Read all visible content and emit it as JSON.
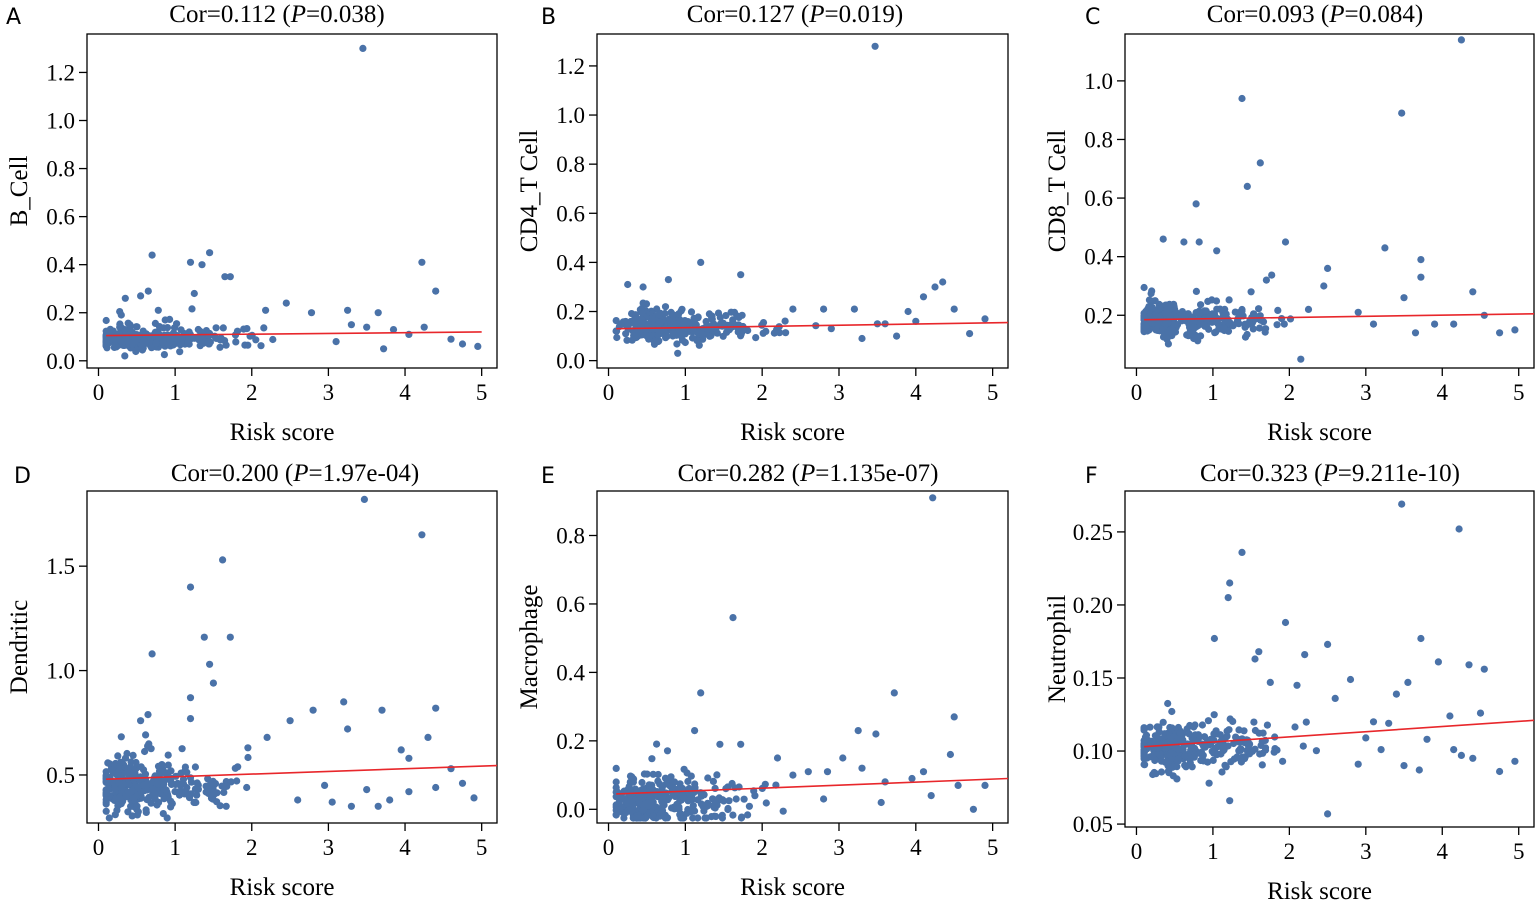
{
  "colors": {
    "point": "#4a72a8",
    "fit_line": "#e8272b",
    "axes": "#000000"
  },
  "chart_data": [
    {
      "panel": "A",
      "type": "scatter",
      "title": {
        "prefix": "Cor=0.112 (",
        "p_symbol": "P",
        "suffix": "=0.038)"
      },
      "xlabel": "Risk score",
      "ylabel": "B_Cell",
      "xlim": [
        -0.15,
        5.2
      ],
      "ylim": [
        -0.03,
        1.36
      ],
      "xticks": [
        0,
        1,
        2,
        3,
        4,
        5
      ],
      "yticks": [
        0.0,
        0.2,
        0.4,
        0.6,
        0.8,
        1.0,
        1.2
      ],
      "ytick_decimals": 1,
      "fit": {
        "x": [
          0.1,
          5.0
        ],
        "y": [
          0.105,
          0.12
        ]
      },
      "outliers": [
        [
          3.45,
          1.3
        ],
        [
          0.7,
          0.44
        ],
        [
          1.45,
          0.45
        ],
        [
          1.2,
          0.41
        ],
        [
          1.35,
          0.4
        ],
        [
          1.65,
          0.35
        ],
        [
          1.72,
          0.35
        ],
        [
          4.22,
          0.41
        ],
        [
          4.4,
          0.29
        ],
        [
          0.65,
          0.29
        ],
        [
          0.55,
          0.27
        ],
        [
          1.25,
          0.28
        ],
        [
          0.35,
          0.26
        ],
        [
          0.78,
          0.21
        ],
        [
          2.45,
          0.24
        ],
        [
          2.78,
          0.2
        ],
        [
          3.25,
          0.21
        ],
        [
          3.65,
          0.2
        ],
        [
          2.18,
          0.21
        ],
        [
          3.85,
          0.13
        ],
        [
          4.25,
          0.14
        ],
        [
          4.6,
          0.09
        ],
        [
          4.75,
          0.07
        ],
        [
          4.95,
          0.06
        ],
        [
          3.3,
          0.15
        ],
        [
          3.1,
          0.08
        ],
        [
          3.5,
          0.14
        ],
        [
          3.72,
          0.05
        ],
        [
          4.05,
          0.11
        ]
      ],
      "cluster": {
        "n": 330,
        "x": [
          0.1,
          2.6
        ],
        "x_center": 0.5,
        "y_base": 0.09,
        "y_spread": 0.04,
        "seed": 11
      }
    },
    {
      "panel": "B",
      "type": "scatter",
      "title": {
        "prefix": "Cor=0.127 (",
        "p_symbol": "P",
        "suffix": "=0.019)"
      },
      "xlabel": "Risk score",
      "ylabel": "CD4_T Cell",
      "xlim": [
        -0.15,
        5.2
      ],
      "ylim": [
        -0.03,
        1.33
      ],
      "xticks": [
        0,
        1,
        2,
        3,
        4,
        5
      ],
      "yticks": [
        0.0,
        0.2,
        0.4,
        0.6,
        0.8,
        1.0,
        1.2
      ],
      "ytick_decimals": 1,
      "fit": {
        "x": [
          0.1,
          5.2
        ],
        "y": [
          0.13,
          0.155
        ]
      },
      "outliers": [
        [
          3.47,
          1.28
        ],
        [
          1.2,
          0.4
        ],
        [
          1.72,
          0.35
        ],
        [
          0.78,
          0.33
        ],
        [
          0.25,
          0.31
        ],
        [
          0.45,
          0.3
        ],
        [
          4.35,
          0.32
        ],
        [
          4.25,
          0.3
        ],
        [
          4.1,
          0.26
        ],
        [
          4.5,
          0.21
        ],
        [
          4.7,
          0.11
        ],
        [
          4.9,
          0.17
        ],
        [
          3.2,
          0.21
        ],
        [
          2.8,
          0.21
        ],
        [
          3.6,
          0.15
        ],
        [
          3.9,
          0.2
        ],
        [
          3.3,
          0.09
        ],
        [
          2.4,
          0.21
        ],
        [
          2.9,
          0.13
        ],
        [
          0.9,
          0.03
        ],
        [
          3.5,
          0.15
        ],
        [
          3.75,
          0.1
        ],
        [
          4.0,
          0.16
        ]
      ],
      "cluster": {
        "n": 330,
        "x": [
          0.1,
          2.8
        ],
        "x_center": 0.7,
        "y_base": 0.135,
        "y_spread": 0.05,
        "seed": 23
      }
    },
    {
      "panel": "C",
      "type": "scatter",
      "title": {
        "prefix": "Cor=0.093 (",
        "p_symbol": "P",
        "suffix": "=0.084)"
      },
      "xlabel": "Risk score",
      "ylabel": "CD8_T Cell",
      "xlim": [
        -0.15,
        5.2
      ],
      "ylim": [
        0.02,
        1.16
      ],
      "xticks": [
        0,
        1,
        2,
        3,
        4,
        5
      ],
      "yticks": [
        0.2,
        0.4,
        0.6,
        0.8,
        1.0
      ],
      "ytick_decimals": 1,
      "fit": {
        "x": [
          0.1,
          5.2
        ],
        "y": [
          0.185,
          0.205
        ]
      },
      "outliers": [
        [
          4.25,
          1.14
        ],
        [
          1.38,
          0.94
        ],
        [
          3.47,
          0.89
        ],
        [
          1.62,
          0.72
        ],
        [
          1.45,
          0.64
        ],
        [
          0.78,
          0.58
        ],
        [
          1.95,
          0.45
        ],
        [
          0.35,
          0.46
        ],
        [
          0.62,
          0.45
        ],
        [
          0.82,
          0.45
        ],
        [
          1.05,
          0.42
        ],
        [
          3.25,
          0.43
        ],
        [
          3.72,
          0.39
        ],
        [
          3.72,
          0.33
        ],
        [
          4.4,
          0.28
        ],
        [
          1.7,
          0.32
        ],
        [
          2.5,
          0.36
        ],
        [
          3.5,
          0.26
        ],
        [
          2.45,
          0.3
        ],
        [
          1.5,
          0.28
        ],
        [
          2.25,
          0.22
        ],
        [
          2.15,
          0.05
        ],
        [
          4.55,
          0.2
        ],
        [
          4.75,
          0.14
        ],
        [
          4.95,
          0.15
        ],
        [
          3.1,
          0.17
        ],
        [
          2.9,
          0.21
        ],
        [
          3.65,
          0.14
        ],
        [
          3.9,
          0.17
        ],
        [
          4.15,
          0.17
        ]
      ],
      "cluster": {
        "n": 330,
        "x": [
          0.1,
          2.6
        ],
        "x_center": 0.5,
        "y_base": 0.18,
        "y_spread": 0.05,
        "seed": 37
      }
    },
    {
      "panel": "D",
      "type": "scatter",
      "title": {
        "prefix": "Cor=0.200 (",
        "p_symbol": "P",
        "suffix": "=1.97e-04)"
      },
      "xlabel": "Risk score",
      "ylabel": "Dendritic",
      "xlim": [
        -0.15,
        5.2
      ],
      "ylim": [
        0.27,
        1.86
      ],
      "xticks": [
        0,
        1,
        2,
        3,
        4,
        5
      ],
      "yticks": [
        0.5,
        1.0,
        1.5
      ],
      "ytick_decimals": 1,
      "fit": {
        "x": [
          0.1,
          5.2
        ],
        "y": [
          0.48,
          0.545
        ]
      },
      "outliers": [
        [
          3.47,
          1.82
        ],
        [
          4.22,
          1.65
        ],
        [
          1.62,
          1.53
        ],
        [
          1.2,
          1.4
        ],
        [
          1.38,
          1.16
        ],
        [
          1.72,
          1.16
        ],
        [
          0.7,
          1.08
        ],
        [
          1.45,
          1.03
        ],
        [
          1.5,
          0.94
        ],
        [
          1.2,
          0.87
        ],
        [
          3.2,
          0.85
        ],
        [
          4.4,
          0.82
        ],
        [
          2.8,
          0.81
        ],
        [
          3.7,
          0.81
        ],
        [
          3.25,
          0.72
        ],
        [
          2.5,
          0.76
        ],
        [
          1.2,
          0.77
        ],
        [
          0.55,
          0.76
        ],
        [
          4.3,
          0.68
        ],
        [
          3.95,
          0.62
        ],
        [
          4.05,
          0.58
        ],
        [
          2.2,
          0.68
        ],
        [
          1.95,
          0.63
        ],
        [
          4.4,
          0.44
        ],
        [
          4.6,
          0.53
        ],
        [
          4.75,
          0.46
        ],
        [
          4.9,
          0.39
        ],
        [
          3.3,
          0.35
        ],
        [
          3.65,
          0.35
        ],
        [
          3.05,
          0.37
        ],
        [
          2.95,
          0.45
        ],
        [
          2.6,
          0.38
        ],
        [
          3.5,
          0.43
        ],
        [
          3.8,
          0.38
        ],
        [
          4.05,
          0.42
        ]
      ],
      "cluster": {
        "n": 330,
        "x": [
          0.1,
          2.6
        ],
        "x_center": 0.5,
        "y_base": 0.44,
        "y_spread": 0.1,
        "seed": 41
      }
    },
    {
      "panel": "E",
      "type": "scatter",
      "title": {
        "prefix": "Cor=0.282 (",
        "p_symbol": "P",
        "suffix": "=1.135e-07)"
      },
      "xlabel": "Risk score",
      "ylabel": "Macrophage",
      "xlim": [
        -0.15,
        5.2
      ],
      "ylim": [
        -0.04,
        0.93
      ],
      "xticks": [
        0,
        1,
        2,
        3,
        4,
        5
      ],
      "yticks": [
        0.0,
        0.2,
        0.4,
        0.6,
        0.8
      ],
      "ytick_decimals": 1,
      "fit": {
        "x": [
          0.1,
          5.2
        ],
        "y": [
          0.045,
          0.09
        ]
      },
      "outliers": [
        [
          4.22,
          0.91
        ],
        [
          1.62,
          0.56
        ],
        [
          3.72,
          0.34
        ],
        [
          1.2,
          0.34
        ],
        [
          4.5,
          0.27
        ],
        [
          3.25,
          0.23
        ],
        [
          3.48,
          0.22
        ],
        [
          4.45,
          0.16
        ],
        [
          4.1,
          0.11
        ],
        [
          3.95,
          0.09
        ],
        [
          4.2,
          0.04
        ],
        [
          4.55,
          0.07
        ],
        [
          4.75,
          0.0
        ],
        [
          4.9,
          0.07
        ],
        [
          3.05,
          0.15
        ],
        [
          2.85,
          0.11
        ],
        [
          3.3,
          0.12
        ],
        [
          3.6,
          0.08
        ],
        [
          1.12,
          0.23
        ],
        [
          1.45,
          0.19
        ],
        [
          1.72,
          0.19
        ],
        [
          2.2,
          0.15
        ],
        [
          2.4,
          0.1
        ],
        [
          2.6,
          0.11
        ],
        [
          2.8,
          0.03
        ],
        [
          3.55,
          0.02
        ]
      ],
      "cluster": {
        "n": 330,
        "x": [
          0.1,
          2.6
        ],
        "x_center": 0.6,
        "y_base": 0.02,
        "y_spread": 0.06,
        "seed": 53
      }
    },
    {
      "panel": "F",
      "type": "scatter",
      "title": {
        "prefix": "Cor=0.323 (",
        "p_symbol": "P",
        "suffix": "=9.211e-10)"
      },
      "xlabel": "Risk score",
      "ylabel": "Neutrophil",
      "xlim": [
        -0.15,
        5.2
      ],
      "ylim": [
        0.048,
        0.278
      ],
      "xticks": [
        0,
        1,
        2,
        3,
        4,
        5
      ],
      "yticks": [
        0.05,
        0.1,
        0.15,
        0.2,
        0.25
      ],
      "ytick_decimals": 2,
      "fit": {
        "x": [
          0.1,
          5.2
        ],
        "y": [
          0.103,
          0.121
        ]
      },
      "outliers": [
        [
          3.47,
          0.269
        ],
        [
          4.22,
          0.252
        ],
        [
          1.38,
          0.236
        ],
        [
          1.22,
          0.215
        ],
        [
          1.2,
          0.205
        ],
        [
          1.95,
          0.188
        ],
        [
          1.02,
          0.177
        ],
        [
          3.72,
          0.177
        ],
        [
          1.6,
          0.168
        ],
        [
          1.55,
          0.163
        ],
        [
          2.2,
          0.166
        ],
        [
          3.95,
          0.161
        ],
        [
          4.35,
          0.159
        ],
        [
          4.55,
          0.156
        ],
        [
          3.4,
          0.139
        ],
        [
          3.55,
          0.147
        ],
        [
          2.8,
          0.149
        ],
        [
          2.1,
          0.145
        ],
        [
          2.6,
          0.136
        ],
        [
          2.5,
          0.173
        ],
        [
          1.75,
          0.147
        ],
        [
          3.1,
          0.12
        ],
        [
          4.1,
          0.124
        ],
        [
          4.5,
          0.126
        ],
        [
          3.0,
          0.109
        ],
        [
          3.3,
          0.119
        ],
        [
          3.8,
          0.108
        ],
        [
          4.15,
          0.101
        ],
        [
          4.25,
          0.097
        ],
        [
          2.9,
          0.091
        ],
        [
          3.2,
          0.101
        ],
        [
          3.5,
          0.09
        ],
        [
          3.7,
          0.087
        ],
        [
          4.4,
          0.095
        ],
        [
          4.75,
          0.086
        ],
        [
          4.95,
          0.093
        ],
        [
          2.5,
          0.057
        ],
        [
          1.22,
          0.066
        ],
        [
          0.95,
          0.078
        ]
      ],
      "cluster": {
        "n": 330,
        "x": [
          0.1,
          2.6
        ],
        "x_center": 0.55,
        "y_base": 0.101,
        "y_spread": 0.012,
        "seed": 67
      }
    }
  ]
}
